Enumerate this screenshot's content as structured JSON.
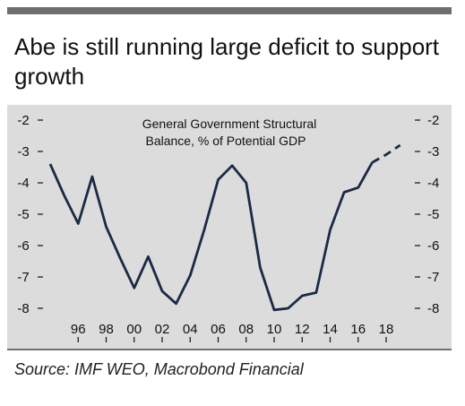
{
  "title": "Abe is still running large deficit to support growth",
  "source": "Source: IMF WEO, Macrobond Financial",
  "colors": {
    "line": "#1a2a44",
    "panel": "#dcdcdc",
    "rule": "#6f6f6f"
  },
  "chart_data": {
    "type": "line",
    "title": "General Government Structural Balance, % of Potential GDP",
    "title_lines": [
      "General Government Structural",
      "Balance, % of Potential GDP"
    ],
    "xlabel": "",
    "ylabel": "",
    "ylim": [
      -8.2,
      -1.8
    ],
    "yticks": [
      -2,
      -3,
      -4,
      -5,
      -6,
      -7,
      -8
    ],
    "ytick_labels": [
      "-2",
      "-3",
      "-4",
      "-5",
      "-6",
      "-7",
      "-8"
    ],
    "xlim": [
      1993.5,
      2020.5
    ],
    "xticks": [
      1996,
      1998,
      2000,
      2002,
      2004,
      2006,
      2008,
      2010,
      2012,
      2014,
      2016,
      2018
    ],
    "xtick_labels": [
      "96",
      "98",
      "00",
      "02",
      "04",
      "06",
      "08",
      "10",
      "12",
      "14",
      "16",
      "18"
    ],
    "grid": false,
    "legend": "none",
    "series": [
      {
        "style": "solid",
        "x": [
          1994,
          1995,
          1996,
          1997,
          1998,
          1999,
          2000,
          2001,
          2002,
          2003,
          2004,
          2005,
          2006,
          2007,
          2008,
          2009,
          2010,
          2011,
          2012,
          2013,
          2014,
          2015,
          2016,
          2017
        ],
        "y": [
          -3.4,
          -4.4,
          -5.3,
          -3.8,
          -5.4,
          -6.4,
          -7.35,
          -6.35,
          -7.45,
          -7.85,
          -6.95,
          -5.5,
          -3.9,
          -3.45,
          -4.0,
          -6.7,
          -8.05,
          -8.0,
          -7.6,
          -7.5,
          -5.5,
          -4.3,
          -4.15,
          -3.35
        ]
      },
      {
        "style": "dashed",
        "x": [
          2017,
          2018,
          2019
        ],
        "y": [
          -3.35,
          -3.1,
          -2.8
        ]
      }
    ]
  }
}
